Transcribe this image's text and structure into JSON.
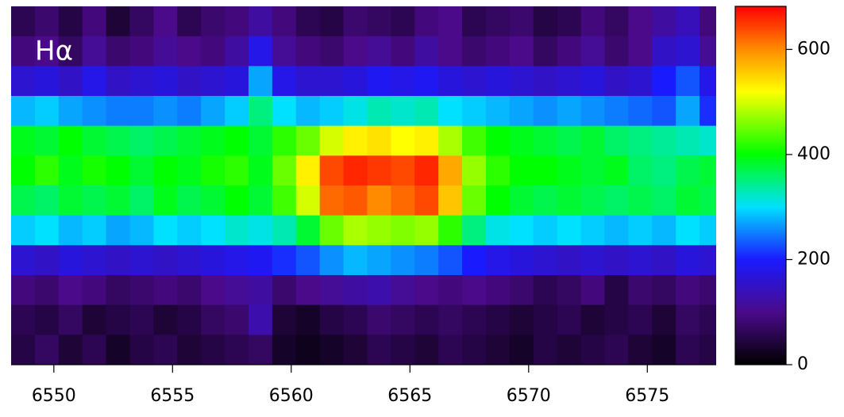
{
  "chart_data": {
    "type": "heatmap",
    "annotation": "Hα",
    "x": [
      6548.7,
      6549.7,
      6550.7,
      6551.7,
      6552.7,
      6553.7,
      6554.7,
      6555.7,
      6556.7,
      6557.7,
      6558.7,
      6559.7,
      6560.7,
      6561.7,
      6562.7,
      6563.7,
      6564.7,
      6565.7,
      6566.7,
      6567.7,
      6568.7,
      6569.7,
      6570.7,
      6571.7,
      6572.7,
      6573.7,
      6574.7,
      6575.7,
      6576.7,
      6577.7
    ],
    "xlim": [
      6548.2,
      6577.9
    ],
    "xticks": [
      6550,
      6555,
      6560,
      6565,
      6570,
      6575
    ],
    "z": [
      [
        60,
        80,
        50,
        90,
        40,
        70,
        100,
        60,
        80,
        90,
        120,
        90,
        60,
        50,
        80,
        70,
        60,
        90,
        100,
        60,
        70,
        80,
        50,
        60,
        90,
        70,
        100,
        120,
        140,
        90
      ],
      [
        90,
        100,
        70,
        110,
        80,
        90,
        110,
        100,
        90,
        120,
        180,
        110,
        90,
        80,
        100,
        110,
        90,
        120,
        100,
        80,
        90,
        100,
        70,
        90,
        110,
        80,
        100,
        150,
        160,
        110
      ],
      [
        160,
        170,
        150,
        180,
        150,
        160,
        170,
        150,
        160,
        170,
        270,
        180,
        160,
        160,
        170,
        190,
        180,
        190,
        170,
        160,
        170,
        160,
        150,
        160,
        170,
        150,
        160,
        200,
        230,
        180
      ],
      [
        280,
        290,
        270,
        260,
        250,
        250,
        260,
        250,
        270,
        290,
        350,
        300,
        280,
        290,
        310,
        330,
        320,
        330,
        300,
        290,
        280,
        270,
        260,
        270,
        260,
        250,
        240,
        230,
        270,
        210
      ],
      [
        390,
        380,
        400,
        380,
        370,
        360,
        370,
        380,
        390,
        400,
        380,
        420,
        450,
        500,
        530,
        540,
        520,
        530,
        480,
        430,
        400,
        390,
        380,
        370,
        380,
        360,
        350,
        340,
        330,
        320
      ],
      [
        400,
        420,
        390,
        410,
        400,
        380,
        400,
        390,
        410,
        420,
        390,
        450,
        530,
        640,
        660,
        650,
        640,
        660,
        580,
        470,
        420,
        400,
        400,
        390,
        380,
        390,
        360,
        350,
        370,
        380
      ],
      [
        370,
        360,
        380,
        370,
        380,
        360,
        390,
        370,
        380,
        400,
        380,
        430,
        500,
        620,
        630,
        600,
        620,
        640,
        560,
        450,
        400,
        380,
        370,
        380,
        370,
        360,
        370,
        360,
        380,
        370
      ],
      [
        290,
        300,
        280,
        290,
        270,
        280,
        300,
        290,
        300,
        320,
        310,
        330,
        380,
        450,
        480,
        470,
        460,
        470,
        420,
        350,
        310,
        300,
        290,
        300,
        290,
        280,
        290,
        280,
        300,
        290
      ],
      [
        160,
        150,
        170,
        160,
        150,
        160,
        150,
        160,
        170,
        180,
        190,
        210,
        230,
        260,
        280,
        270,
        260,
        250,
        230,
        200,
        180,
        170,
        160,
        150,
        160,
        150,
        160,
        150,
        170,
        160
      ],
      [
        90,
        80,
        100,
        90,
        70,
        80,
        90,
        80,
        100,
        110,
        120,
        80,
        100,
        110,
        120,
        130,
        110,
        100,
        90,
        100,
        90,
        80,
        60,
        70,
        90,
        50,
        80,
        70,
        90,
        80
      ],
      [
        60,
        50,
        70,
        40,
        50,
        60,
        40,
        50,
        70,
        80,
        130,
        40,
        30,
        50,
        60,
        80,
        70,
        60,
        70,
        60,
        50,
        40,
        50,
        60,
        40,
        50,
        60,
        40,
        70,
        60
      ],
      [
        50,
        70,
        40,
        60,
        30,
        50,
        60,
        40,
        50,
        60,
        70,
        30,
        20,
        30,
        40,
        60,
        50,
        40,
        60,
        50,
        40,
        30,
        50,
        40,
        50,
        60,
        40,
        30,
        60,
        50
      ]
    ],
    "zlim": [
      0,
      682
    ],
    "zticks": [
      0,
      200,
      400,
      600
    ],
    "colorscale": [
      [
        0,
        "#000000"
      ],
      [
        100,
        "#4a0a8a"
      ],
      [
        200,
        "#1a1aff"
      ],
      [
        300,
        "#00e0ff"
      ],
      [
        400,
        "#00ff00"
      ],
      [
        520,
        "#ffff00"
      ],
      [
        600,
        "#ff8c00"
      ],
      [
        682,
        "#ff0000"
      ]
    ]
  }
}
